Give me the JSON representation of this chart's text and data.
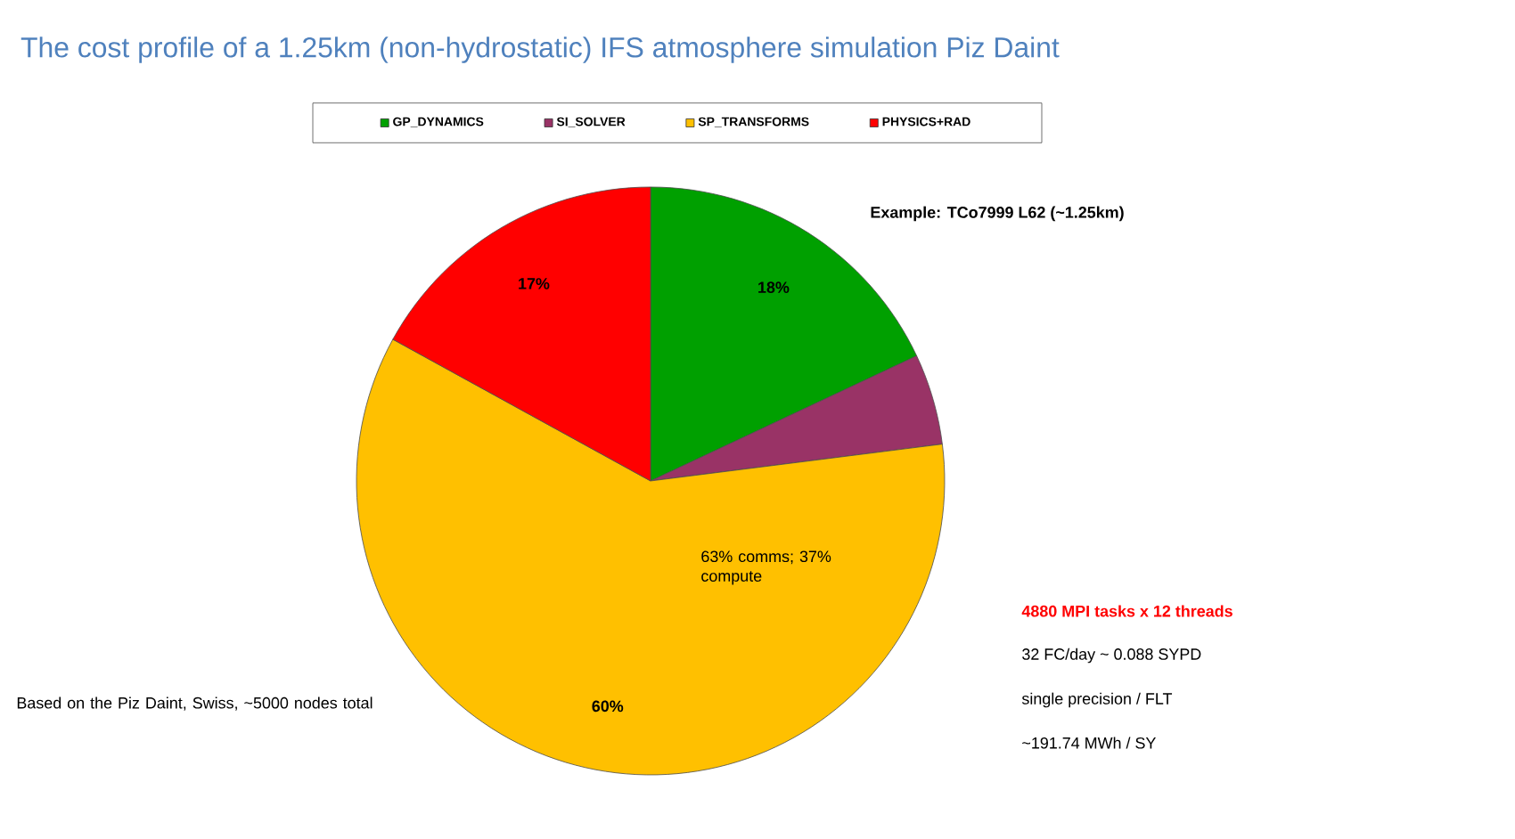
{
  "chart_data": {
    "type": "pie",
    "title": "The cost profile of a 1.25km (non-hydrostatic) IFS atmosphere simulation Piz Daint",
    "categories": [
      "GP_DYNAMICS",
      "SI_SOLVER",
      "SP_TRANSFORMS",
      "PHYSICS+RAD"
    ],
    "values": [
      18,
      5,
      60,
      17
    ],
    "colors": [
      "#00a000",
      "#993366",
      "#ffc000",
      "#ff0000"
    ],
    "value_labels": [
      "18%",
      null,
      "60%",
      "17%"
    ],
    "legend": "top",
    "annotations": [
      "Example: TCo7999 L62 (~1.25km)",
      "63% comms; 37% compute",
      "4880 MPI tasks x 12 threads",
      "32 FC/day ~ 0.088 SYPD",
      "single precision / FLT",
      "~191.74 MWh / SY",
      "Based on the Piz Daint, Swiss, ~5000 nodes total"
    ]
  }
}
